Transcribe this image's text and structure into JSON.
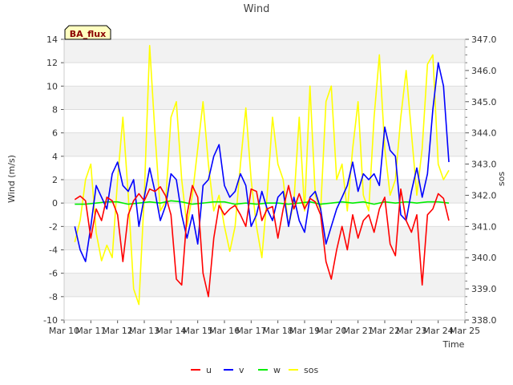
{
  "chart_data": {
    "type": "line",
    "title": "Wind",
    "badge": "BA_flux",
    "xlabel": "Time",
    "ylabel": "Wind (m/s)",
    "y2label": "sos",
    "xlim": [
      10,
      25
    ],
    "ylim": [
      -10,
      14
    ],
    "y2lim": [
      338.0,
      347.0
    ],
    "x_ticks": [
      10,
      11,
      12,
      13,
      14,
      15,
      16,
      17,
      18,
      19,
      20,
      21,
      22,
      23,
      24,
      25
    ],
    "x_tick_labels": [
      "Mar 10",
      "Mar 11",
      "Mar 12",
      "Mar 13",
      "Mar 14",
      "Mar 15",
      "Mar 16",
      "Mar 17",
      "Mar 18",
      "Mar 19",
      "Mar 20",
      "Mar 21",
      "Mar 22",
      "Mar 23",
      "Mar 24",
      "Mar 25"
    ],
    "y_ticks": [
      -10,
      -8,
      -6,
      -4,
      -2,
      0,
      2,
      4,
      6,
      8,
      10,
      12,
      14
    ],
    "y2_ticks": [
      338.0,
      339.0,
      340.0,
      341.0,
      342.0,
      343.0,
      344.0,
      345.0,
      346.0,
      347.0
    ],
    "y2_tick_labels": [
      "338.0",
      "339.0",
      "340.0",
      "341.0",
      "342.0",
      "343.0",
      "344.0",
      "345.0",
      "346.0",
      "347.0"
    ],
    "grid": true,
    "legend_position": "bottom-center",
    "series": [
      {
        "name": "u",
        "axis": "left",
        "color": "#ff0000",
        "x": [
          10.4,
          10.6,
          10.8,
          11.0,
          11.2,
          11.4,
          11.6,
          11.8,
          12.0,
          12.2,
          12.4,
          12.6,
          12.8,
          13.0,
          13.2,
          13.4,
          13.6,
          13.8,
          14.0,
          14.2,
          14.4,
          14.6,
          14.8,
          15.0,
          15.2,
          15.4,
          15.6,
          15.8,
          16.0,
          16.2,
          16.4,
          16.6,
          16.8,
          17.0,
          17.2,
          17.4,
          17.6,
          17.8,
          18.0,
          18.2,
          18.4,
          18.6,
          18.8,
          19.0,
          19.2,
          19.4,
          19.6,
          19.8,
          20.0,
          20.2,
          20.4,
          20.6,
          20.8,
          21.0,
          21.2,
          21.4,
          21.6,
          21.8,
          22.0,
          22.2,
          22.4,
          22.6,
          22.8,
          23.0,
          23.2,
          23.4,
          23.6,
          23.8,
          24.0,
          24.2,
          24.4
        ],
        "y": [
          0.3,
          0.6,
          0.2,
          -3.0,
          -0.5,
          -1.5,
          0.5,
          0.2,
          -1.0,
          -5.0,
          -1.0,
          0.2,
          0.8,
          0.2,
          1.2,
          1.0,
          1.4,
          0.6,
          -1.0,
          -6.5,
          -7.0,
          -1.0,
          1.5,
          0.5,
          -6.0,
          -8.0,
          -3.0,
          -0.2,
          -1.0,
          -0.5,
          -0.2,
          -1.0,
          -2.0,
          1.2,
          1.0,
          -1.5,
          -0.5,
          -0.3,
          -3.0,
          -0.5,
          1.5,
          -0.5,
          0.8,
          -0.5,
          0.4,
          0.1,
          -1.0,
          -5.0,
          -6.5,
          -4.0,
          -2.0,
          -4.0,
          -1.0,
          -3.0,
          -1.5,
          -1.0,
          -2.5,
          -0.5,
          0.5,
          -3.5,
          -4.5,
          1.2,
          -1.5,
          -2.5,
          -1.0,
          -7.0,
          -1.0,
          -0.5,
          0.8,
          0.4,
          -1.5
        ]
      },
      {
        "name": "v",
        "axis": "left",
        "color": "#0000ff",
        "x": [
          10.4,
          10.6,
          10.8,
          11.0,
          11.2,
          11.4,
          11.6,
          11.8,
          12.0,
          12.2,
          12.4,
          12.6,
          12.8,
          13.0,
          13.2,
          13.4,
          13.6,
          13.8,
          14.0,
          14.2,
          14.4,
          14.6,
          14.8,
          15.0,
          15.2,
          15.4,
          15.6,
          15.8,
          16.0,
          16.2,
          16.4,
          16.6,
          16.8,
          17.0,
          17.2,
          17.4,
          17.6,
          17.8,
          18.0,
          18.2,
          18.4,
          18.6,
          18.8,
          19.0,
          19.2,
          19.4,
          19.6,
          19.8,
          20.0,
          20.2,
          20.4,
          20.6,
          20.8,
          21.0,
          21.2,
          21.4,
          21.6,
          21.8,
          22.0,
          22.2,
          22.4,
          22.6,
          22.8,
          23.0,
          23.2,
          23.4,
          23.6,
          23.8,
          24.0,
          24.2,
          24.4
        ],
        "y": [
          -2.0,
          -4.0,
          -5.0,
          -2.0,
          1.5,
          0.5,
          -0.5,
          2.5,
          3.5,
          1.5,
          1.0,
          2.0,
          -2.0,
          0.5,
          3.0,
          1.0,
          -1.5,
          -0.2,
          2.5,
          2.0,
          -1.0,
          -3.0,
          -1.0,
          -3.5,
          1.5,
          2.0,
          4.0,
          5.0,
          1.5,
          0.5,
          1.0,
          2.5,
          1.5,
          -2.0,
          -1.0,
          1.0,
          -0.5,
          -1.5,
          0.5,
          1.0,
          -2.0,
          0.5,
          -1.5,
          -2.5,
          0.5,
          1.0,
          -0.5,
          -3.5,
          -2.0,
          -0.5,
          0.5,
          1.5,
          3.5,
          1.0,
          2.5,
          2.0,
          2.5,
          1.5,
          6.5,
          4.5,
          4.0,
          -1.0,
          -1.5,
          1.0,
          3.0,
          0.5,
          2.5,
          8.0,
          12.0,
          10.0,
          3.5
        ]
      },
      {
        "name": "w",
        "axis": "left",
        "color": "#00ee00",
        "x": [
          10.4,
          10.8,
          11.2,
          11.6,
          12.0,
          12.4,
          12.8,
          13.2,
          13.6,
          14.0,
          14.4,
          14.8,
          15.2,
          15.6,
          16.0,
          16.4,
          16.8,
          17.2,
          17.6,
          18.0,
          18.4,
          18.8,
          19.2,
          19.6,
          20.0,
          20.4,
          20.8,
          21.2,
          21.6,
          22.0,
          22.4,
          22.8,
          23.2,
          23.6,
          24.0,
          24.4
        ],
        "y": [
          -0.1,
          -0.1,
          0.0,
          0.1,
          0.1,
          -0.1,
          0.0,
          0.1,
          0.0,
          0.2,
          0.1,
          -0.1,
          0.0,
          0.1,
          0.1,
          -0.1,
          0.0,
          -0.1,
          0.0,
          0.0,
          -0.1,
          0.0,
          0.1,
          -0.1,
          0.0,
          0.1,
          0.0,
          0.1,
          -0.1,
          0.1,
          0.0,
          0.1,
          0.0,
          0.1,
          0.1,
          0.0
        ]
      },
      {
        "name": "sos",
        "axis": "right",
        "color": "#ffff00",
        "x": [
          10.4,
          10.6,
          10.8,
          11.0,
          11.2,
          11.4,
          11.6,
          11.8,
          12.0,
          12.2,
          12.4,
          12.6,
          12.8,
          13.0,
          13.2,
          13.4,
          13.6,
          13.8,
          14.0,
          14.2,
          14.4,
          14.6,
          14.8,
          15.0,
          15.2,
          15.4,
          15.6,
          15.8,
          16.0,
          16.2,
          16.4,
          16.6,
          16.8,
          17.0,
          17.2,
          17.4,
          17.6,
          17.8,
          18.0,
          18.2,
          18.4,
          18.6,
          18.8,
          19.0,
          19.2,
          19.4,
          19.6,
          19.8,
          20.0,
          20.2,
          20.4,
          20.6,
          20.8,
          21.0,
          21.2,
          21.4,
          21.6,
          21.8,
          22.0,
          22.2,
          22.4,
          22.6,
          22.8,
          23.0,
          23.2,
          23.4,
          23.6,
          23.8,
          24.0,
          24.2,
          24.4
        ],
        "y": [
          340.5,
          341.2,
          342.5,
          343.0,
          340.8,
          339.9,
          340.4,
          340.0,
          342.5,
          344.5,
          342.0,
          339.0,
          338.5,
          342.0,
          346.8,
          344.0,
          341.5,
          341.8,
          344.5,
          345.0,
          342.5,
          341.0,
          342.0,
          343.5,
          345.0,
          343.0,
          341.5,
          342.0,
          341.0,
          340.2,
          341.0,
          343.0,
          344.8,
          342.5,
          341.0,
          340.0,
          342.0,
          344.5,
          343.0,
          342.5,
          341.0,
          341.8,
          344.5,
          341.5,
          345.5,
          342.0,
          341.5,
          345.0,
          345.5,
          342.5,
          343.0,
          341.5,
          343.5,
          345.0,
          342.0,
          341.5,
          344.5,
          346.5,
          343.5,
          342.0,
          342.5,
          344.5,
          346.0,
          344.0,
          342.0,
          343.5,
          346.2,
          346.5,
          343.0,
          342.5,
          342.8
        ]
      }
    ]
  }
}
